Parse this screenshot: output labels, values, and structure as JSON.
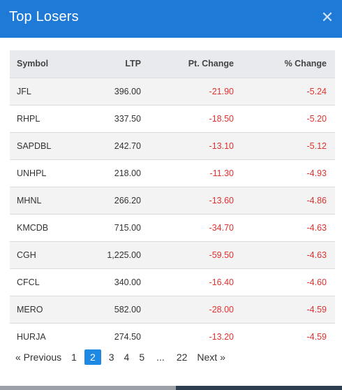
{
  "modal": {
    "title": "Top Losers",
    "close_icon": "close-icon",
    "accent_color": "#1e7ad6"
  },
  "table": {
    "headers": {
      "symbol": "Symbol",
      "ltp": "LTP",
      "pt_change": "Pt. Change",
      "pct_change": "% Change"
    },
    "rows": [
      {
        "symbol": "JFL",
        "ltp": "396.00",
        "pt_change": "-21.90",
        "pct_change": "-5.24"
      },
      {
        "symbol": "RHPL",
        "ltp": "337.50",
        "pt_change": "-18.50",
        "pct_change": "-5.20"
      },
      {
        "symbol": "SAPDBL",
        "ltp": "242.70",
        "pt_change": "-13.10",
        "pct_change": "-5.12"
      },
      {
        "symbol": "UNHPL",
        "ltp": "218.00",
        "pt_change": "-11.30",
        "pct_change": "-4.93"
      },
      {
        "symbol": "MHNL",
        "ltp": "266.20",
        "pt_change": "-13.60",
        "pct_change": "-4.86"
      },
      {
        "symbol": "KMCDB",
        "ltp": "715.00",
        "pt_change": "-34.70",
        "pct_change": "-4.63"
      },
      {
        "symbol": "CGH",
        "ltp": "1,225.00",
        "pt_change": "-59.50",
        "pct_change": "-4.63"
      },
      {
        "symbol": "CFCL",
        "ltp": "340.00",
        "pt_change": "-16.40",
        "pct_change": "-4.60"
      },
      {
        "symbol": "MERO",
        "ltp": "582.00",
        "pt_change": "-28.00",
        "pct_change": "-4.59"
      },
      {
        "symbol": "HURJA",
        "ltp": "274.50",
        "pt_change": "-13.20",
        "pct_change": "-4.59"
      }
    ],
    "negative_color": "#e0312f"
  },
  "pagination": {
    "previous": "« Previous",
    "pages": [
      "1",
      "2",
      "3",
      "4",
      "5"
    ],
    "active_page": "2",
    "ellipsis": "...",
    "last_page": "22",
    "next": "Next »"
  }
}
